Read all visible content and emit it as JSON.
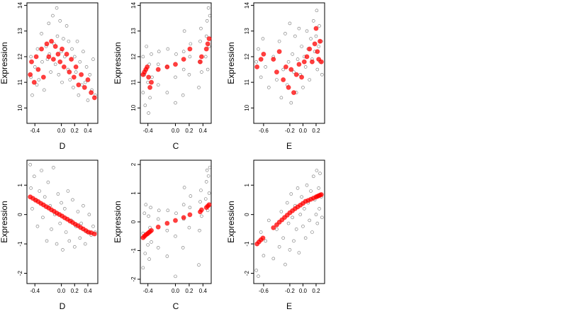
{
  "chart_data": [
    {
      "type": "scatter",
      "xlabel": "D",
      "ylabel": "Expression",
      "xlim": [
        -0.52,
        0.55
      ],
      "ylim": [
        9.4,
        14.1
      ],
      "xticks": [
        -0.4,
        0.0,
        0.2,
        0.4
      ],
      "xtick_labels": [
        "-0.4",
        "0.0",
        "0.2",
        "0.4"
      ],
      "yticks": [
        10,
        11,
        12,
        13,
        14
      ],
      "ytick_labels": [
        "10",
        "11",
        "12",
        "13",
        "14"
      ],
      "gridlines": false,
      "series": [
        {
          "role": "observed",
          "color": "#000000",
          "x": [
            -0.46,
            -0.46,
            -0.44,
            -0.4,
            -0.37,
            -0.36,
            -0.34,
            -0.3,
            -0.29,
            -0.26,
            -0.23,
            -0.21,
            -0.19,
            -0.18,
            -0.16,
            -0.13,
            -0.11,
            -0.09,
            -0.07,
            -0.06,
            -0.04,
            -0.02,
            0.0,
            0.01,
            0.03,
            0.05,
            0.08,
            0.1,
            0.11,
            0.13,
            0.16,
            0.18,
            0.2,
            0.22,
            0.24,
            0.26,
            0.28,
            0.31,
            0.33,
            0.36,
            0.38,
            0.4,
            0.43,
            0.46,
            0.48,
            0.51
          ],
          "y": [
            11.2,
            12.0,
            10.5,
            11.6,
            10.9,
            12.3,
            11.1,
            12.9,
            11.8,
            10.7,
            12.4,
            11.9,
            13.3,
            12.1,
            11.4,
            13.6,
            12.5,
            11.7,
            13.9,
            12.8,
            11.3,
            13.4,
            12.2,
            11.0,
            12.7,
            12.0,
            13.2,
            11.5,
            12.6,
            11.1,
            12.3,
            10.8,
            12.0,
            11.4,
            12.6,
            10.5,
            11.8,
            10.9,
            12.2,
            11.0,
            11.6,
            10.3,
            11.3,
            10.7,
            11.9,
            10.5
          ]
        },
        {
          "role": "fitted",
          "color": "#ff0000",
          "x": [
            -0.47,
            -0.45,
            -0.41,
            -0.38,
            -0.35,
            -0.3,
            -0.27,
            -0.22,
            -0.19,
            -0.15,
            -0.12,
            -0.09,
            -0.05,
            -0.02,
            0.01,
            0.04,
            0.08,
            0.12,
            0.15,
            0.19,
            0.22,
            0.26,
            0.3,
            0.35,
            0.4,
            0.45,
            0.5
          ],
          "y": [
            11.3,
            11.8,
            11.0,
            12.0,
            11.5,
            12.3,
            11.2,
            12.5,
            12.0,
            12.6,
            11.9,
            12.4,
            12.1,
            11.8,
            12.3,
            11.6,
            12.1,
            11.4,
            11.9,
            11.2,
            11.6,
            10.9,
            11.3,
            10.8,
            11.1,
            10.6,
            10.4
          ]
        }
      ]
    },
    {
      "type": "scatter",
      "xlabel": "C",
      "ylabel": "Expression",
      "xlim": [
        -0.51,
        0.52
      ],
      "ylim": [
        9.4,
        14.1
      ],
      "xticks": [
        -0.4,
        0.0,
        0.2,
        0.4
      ],
      "xtick_labels": [
        "-0.4",
        "0.0",
        "0.2",
        "0.4"
      ],
      "yticks": [
        10,
        11,
        12,
        13,
        14
      ],
      "ytick_labels": [
        "10",
        "11",
        "12",
        "13",
        "14"
      ],
      "gridlines": false,
      "series": [
        {
          "role": "observed",
          "color": "#000000",
          "x": [
            -0.47,
            -0.47,
            -0.45,
            -0.44,
            -0.42,
            -0.4,
            -0.39,
            -0.38,
            -0.37,
            -0.35,
            -0.34,
            -0.25,
            -0.25,
            -0.24,
            -0.12,
            -0.12,
            -0.11,
            0.0,
            0.0,
            0.01,
            0.11,
            0.12,
            0.12,
            0.13,
            0.2,
            0.21,
            0.22,
            0.34,
            0.35,
            0.36,
            0.37,
            0.38,
            0.44,
            0.45,
            0.46,
            0.47,
            0.48,
            0.49,
            0.5
          ],
          "y": [
            10.6,
            12.0,
            11.3,
            10.1,
            12.4,
            11.0,
            9.8,
            11.7,
            10.4,
            12.1,
            11.2,
            10.9,
            11.7,
            12.2,
            10.6,
            11.6,
            12.3,
            10.2,
            11.2,
            12.1,
            10.5,
            11.5,
            12.2,
            13.0,
            11.3,
            12.0,
            12.5,
            10.8,
            11.8,
            12.6,
            13.1,
            11.4,
            12.0,
            12.8,
            13.4,
            11.5,
            13.9,
            12.4,
            13.6
          ]
        },
        {
          "role": "fitted",
          "color": "#ff0000",
          "x": [
            -0.47,
            -0.45,
            -0.43,
            -0.41,
            -0.39,
            -0.37,
            -0.35,
            -0.25,
            -0.12,
            0.0,
            0.12,
            0.21,
            0.36,
            0.38,
            0.45,
            0.47,
            0.49
          ],
          "y": [
            11.3,
            11.4,
            11.5,
            11.6,
            11.2,
            10.8,
            11.0,
            11.5,
            11.6,
            11.7,
            11.9,
            12.3,
            11.8,
            12.0,
            12.3,
            12.5,
            12.7
          ]
        }
      ]
    },
    {
      "type": "scatter",
      "xlabel": "E",
      "ylabel": "Expression",
      "xlim": [
        -0.75,
        0.33
      ],
      "ylim": [
        9.4,
        14.1
      ],
      "xticks": [
        -0.6,
        -0.2,
        0.0,
        0.2
      ],
      "xtick_labels": [
        "-0.6",
        "-0.2",
        "0.0",
        "0.2"
      ],
      "yticks": [
        10,
        11,
        12,
        13,
        14
      ],
      "ytick_labels": [
        "10",
        "11",
        "12",
        "13",
        "14"
      ],
      "gridlines": false,
      "series": [
        {
          "role": "observed",
          "color": "#000000",
          "x": [
            -0.71,
            -0.68,
            -0.64,
            -0.61,
            -0.57,
            -0.52,
            -0.45,
            -0.4,
            -0.36,
            -0.33,
            -0.3,
            -0.27,
            -0.24,
            -0.22,
            -0.2,
            -0.18,
            -0.16,
            -0.14,
            -0.12,
            -0.1,
            -0.08,
            -0.06,
            -0.04,
            -0.02,
            0.0,
            0.02,
            0.04,
            0.06,
            0.08,
            0.1,
            0.12,
            0.14,
            0.16,
            0.18,
            0.2,
            0.21,
            0.22,
            0.24,
            0.25,
            0.26,
            0.28,
            0.29
          ],
          "y": [
            11.8,
            12.3,
            11.2,
            12.7,
            11.6,
            10.8,
            12.0,
            11.1,
            12.6,
            10.4,
            11.5,
            12.9,
            10.9,
            11.8,
            13.3,
            10.2,
            12.1,
            11.4,
            12.8,
            10.6,
            11.9,
            13.1,
            11.3,
            12.4,
            10.8,
            12.0,
            11.6,
            13.0,
            12.3,
            11.1,
            12.7,
            11.9,
            13.4,
            12.2,
            12.8,
            13.8,
            11.5,
            12.4,
            13.2,
            11.8,
            12.6,
            11.3
          ]
        },
        {
          "role": "fitted",
          "color": "#ff0000",
          "x": [
            -0.7,
            -0.64,
            -0.6,
            -0.45,
            -0.4,
            -0.36,
            -0.3,
            -0.26,
            -0.22,
            -0.18,
            -0.14,
            -0.1,
            -0.06,
            -0.02,
            0.02,
            0.06,
            0.1,
            0.14,
            0.18,
            0.2,
            0.22,
            0.24,
            0.26,
            0.28
          ],
          "y": [
            11.6,
            11.9,
            12.1,
            11.9,
            11.4,
            12.2,
            11.1,
            11.6,
            10.8,
            11.5,
            10.6,
            11.3,
            11.7,
            11.2,
            11.8,
            12.0,
            12.3,
            11.8,
            12.5,
            13.1,
            12.2,
            11.9,
            12.6,
            11.8
          ]
        }
      ]
    },
    {
      "type": "scatter",
      "xlabel": "D",
      "ylabel": "Expression",
      "xlim": [
        -0.52,
        0.55
      ],
      "ylim": [
        -2.35,
        1.85
      ],
      "xticks": [
        -0.4,
        0.0,
        0.2,
        0.4
      ],
      "xtick_labels": [
        "-0.4",
        "0.0",
        "0.2",
        "0.4"
      ],
      "yticks": [
        -2,
        -1,
        0,
        1
      ],
      "ytick_labels": [
        "-2",
        "-1",
        "0",
        "1"
      ],
      "gridlines": false,
      "series": [
        {
          "role": "observed",
          "color": "#000000",
          "x": [
            -0.47,
            -0.46,
            -0.44,
            -0.41,
            -0.38,
            -0.36,
            -0.33,
            -0.3,
            -0.28,
            -0.25,
            -0.22,
            -0.2,
            -0.17,
            -0.15,
            -0.12,
            -0.1,
            -0.07,
            -0.05,
            -0.02,
            0.0,
            0.02,
            0.05,
            0.07,
            0.1,
            0.12,
            0.15,
            0.17,
            0.2,
            0.22,
            0.25,
            0.28,
            0.3,
            0.33,
            0.36,
            0.39,
            0.42,
            0.45,
            0.48,
            0.51
          ],
          "y": [
            1.7,
            0.9,
            0.2,
            1.3,
            0.5,
            -0.4,
            0.8,
            1.5,
            -0.1,
            0.6,
            -0.9,
            1.1,
            0.3,
            -0.5,
            1.6,
            0.0,
            -1.0,
            0.7,
            -0.3,
            0.4,
            -1.2,
            0.2,
            -0.6,
            0.8,
            -0.9,
            -0.2,
            0.5,
            -1.1,
            -0.4,
            0.1,
            -0.8,
            -0.3,
            0.3,
            -1.0,
            -0.6,
            0.0,
            -0.7,
            -0.4,
            -0.6
          ]
        },
        {
          "role": "fitted",
          "color": "#ff0000",
          "x": [
            -0.47,
            -0.43,
            -0.39,
            -0.35,
            -0.31,
            -0.27,
            -0.23,
            -0.19,
            -0.15,
            -0.11,
            -0.07,
            -0.03,
            0.01,
            0.05,
            0.09,
            0.13,
            0.17,
            0.21,
            0.25,
            0.29,
            0.33,
            0.37,
            0.41,
            0.45,
            0.5
          ],
          "y": [
            0.6,
            0.55,
            0.49,
            0.44,
            0.38,
            0.33,
            0.27,
            0.22,
            0.16,
            0.11,
            0.05,
            0.0,
            -0.05,
            -0.11,
            -0.16,
            -0.22,
            -0.27,
            -0.33,
            -0.38,
            -0.44,
            -0.49,
            -0.55,
            -0.6,
            -0.62,
            -0.66
          ]
        }
      ]
    },
    {
      "type": "scatter",
      "xlabel": "C",
      "ylabel": "Expression",
      "xlim": [
        -0.51,
        0.52
      ],
      "ylim": [
        -2.15,
        2.15
      ],
      "xticks": [
        -0.4,
        0.0,
        0.2,
        0.4
      ],
      "xtick_labels": [
        "-0.4",
        "0.0",
        "0.2",
        "0.4"
      ],
      "yticks": [
        -2,
        -1,
        0,
        1,
        2
      ],
      "ytick_labels": [
        "-2",
        "-1",
        "0",
        "1",
        "2"
      ],
      "gridlines": false,
      "series": [
        {
          "role": "observed",
          "color": "#000000",
          "x": [
            -0.47,
            -0.47,
            -0.45,
            -0.44,
            -0.43,
            -0.4,
            -0.39,
            -0.38,
            -0.37,
            -0.36,
            -0.35,
            -0.25,
            -0.25,
            -0.24,
            -0.12,
            -0.12,
            -0.11,
            0.0,
            0.0,
            0.01,
            0.11,
            0.12,
            0.12,
            0.13,
            0.2,
            0.21,
            0.22,
            0.34,
            0.35,
            0.36,
            0.37,
            0.38,
            0.44,
            0.45,
            0.46,
            0.47,
            0.48,
            0.49,
            0.5
          ],
          "y": [
            -1.6,
            -0.4,
            0.3,
            -1.1,
            0.6,
            -0.8,
            0.2,
            -1.3,
            -0.2,
            0.5,
            -0.7,
            -0.9,
            0.1,
            0.4,
            -1.2,
            -0.3,
            0.4,
            -1.9,
            -0.5,
            0.3,
            -0.9,
            0.1,
            0.6,
            1.2,
            -0.2,
            0.5,
            0.9,
            -1.5,
            -0.3,
            0.7,
            1.1,
            0.2,
            0.8,
            1.4,
            1.8,
            0.4,
            1.6,
            1.0,
            1.9
          ]
        },
        {
          "role": "fitted",
          "color": "#ff0000",
          "x": [
            -0.47,
            -0.45,
            -0.43,
            -0.41,
            -0.39,
            -0.37,
            -0.35,
            -0.25,
            -0.12,
            0.0,
            0.12,
            0.21,
            0.36,
            0.38,
            0.45,
            0.47,
            0.49
          ],
          "y": [
            -0.55,
            -0.5,
            -0.45,
            -0.42,
            -0.38,
            -0.34,
            -0.3,
            -0.18,
            -0.05,
            0.05,
            0.15,
            0.25,
            0.35,
            0.42,
            0.5,
            0.55,
            0.6
          ]
        }
      ]
    },
    {
      "type": "scatter",
      "xlabel": "E",
      "ylabel": "Expression",
      "xlim": [
        -0.75,
        0.33
      ],
      "ylim": [
        -2.35,
        1.85
      ],
      "xticks": [
        -0.6,
        -0.2,
        0.0,
        0.2
      ],
      "xtick_labels": [
        "-0.6",
        "-0.2",
        "0.0",
        "0.2"
      ],
      "yticks": [
        -2,
        -1,
        0,
        1
      ],
      "ytick_labels": [
        "-2",
        "-1",
        "0",
        "1"
      ],
      "gridlines": false,
      "series": [
        {
          "role": "observed",
          "color": "#000000",
          "x": [
            -0.71,
            -0.68,
            -0.64,
            -0.6,
            -0.57,
            -0.52,
            -0.45,
            -0.4,
            -0.36,
            -0.33,
            -0.3,
            -0.27,
            -0.24,
            -0.22,
            -0.2,
            -0.18,
            -0.16,
            -0.14,
            -0.12,
            -0.1,
            -0.08,
            -0.06,
            -0.04,
            -0.02,
            0.0,
            0.02,
            0.04,
            0.06,
            0.08,
            0.1,
            0.12,
            0.14,
            0.16,
            0.18,
            0.2,
            0.21,
            0.22,
            0.24,
            0.25,
            0.26,
            0.28,
            0.29
          ],
          "y": [
            -1.9,
            -2.1,
            -0.6,
            -1.4,
            -0.9,
            -0.2,
            -1.5,
            -0.5,
            -1.1,
            0.1,
            -0.8,
            -1.7,
            0.4,
            -0.3,
            -1.2,
            0.7,
            -0.1,
            -0.9,
            0.3,
            -0.5,
            0.9,
            -1.3,
            0.0,
            0.6,
            -0.4,
            0.2,
            -0.8,
            1.0,
            0.4,
            -0.2,
            0.8,
            -0.6,
            1.3,
            0.5,
            0.0,
            1.5,
            -0.3,
            0.9,
            0.2,
            1.4,
            0.6,
            -0.1
          ]
        },
        {
          "role": "fitted",
          "color": "#ff0000",
          "x": [
            -0.7,
            -0.67,
            -0.64,
            -0.61,
            -0.45,
            -0.4,
            -0.36,
            -0.32,
            -0.28,
            -0.24,
            -0.2,
            -0.16,
            -0.12,
            -0.08,
            -0.04,
            0.0,
            0.04,
            0.08,
            0.12,
            0.16,
            0.2,
            0.22,
            0.24,
            0.26,
            0.28
          ],
          "y": [
            -1.0,
            -0.93,
            -0.86,
            -0.8,
            -0.45,
            -0.35,
            -0.26,
            -0.18,
            -0.1,
            -0.02,
            0.06,
            0.13,
            0.2,
            0.26,
            0.32,
            0.38,
            0.45,
            0.48,
            0.52,
            0.56,
            0.6,
            0.62,
            0.64,
            0.66,
            0.68
          ]
        }
      ]
    }
  ]
}
